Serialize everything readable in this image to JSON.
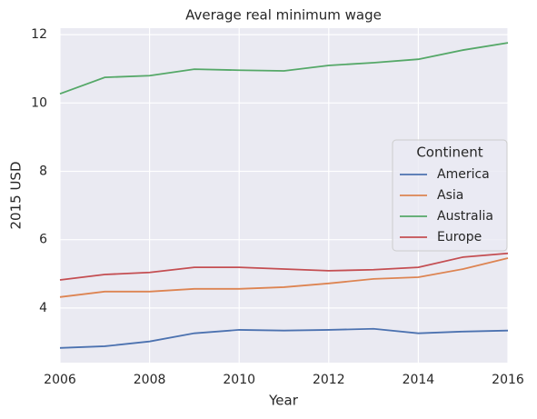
{
  "chart_data": {
    "type": "line",
    "title": "Average real minimum wage",
    "x_label": "Year",
    "y_label": "2015 USD",
    "x": [
      2006,
      2007,
      2008,
      2009,
      2010,
      2011,
      2012,
      2013,
      2014,
      2015,
      2016
    ],
    "xlim": [
      2006,
      2016
    ],
    "xticks": [
      2006,
      2008,
      2010,
      2012,
      2014,
      2016
    ],
    "ylim": [
      2.4,
      12.19
    ],
    "yticks": [
      4,
      6,
      8,
      10,
      12
    ],
    "grid": true,
    "legend_title": "Continent",
    "legend_position": "center right",
    "series": [
      {
        "name": "America",
        "color": "#4c72b0",
        "values": [
          2.83,
          2.88,
          3.02,
          3.26,
          3.36,
          3.34,
          3.36,
          3.39,
          3.26,
          3.31,
          3.34
        ]
      },
      {
        "name": "Asia",
        "color": "#dd8452",
        "values": [
          4.32,
          4.48,
          4.48,
          4.56,
          4.56,
          4.61,
          4.72,
          4.85,
          4.9,
          5.14,
          5.46
        ]
      },
      {
        "name": "Australia",
        "color": "#55a868",
        "values": [
          10.27,
          10.75,
          10.8,
          10.99,
          10.96,
          10.94,
          11.1,
          11.18,
          11.28,
          11.55,
          11.76
        ]
      },
      {
        "name": "Europe",
        "color": "#c44e52",
        "values": [
          4.82,
          4.98,
          5.04,
          5.19,
          5.19,
          5.14,
          5.09,
          5.12,
          5.19,
          5.49,
          5.6
        ]
      }
    ]
  }
}
